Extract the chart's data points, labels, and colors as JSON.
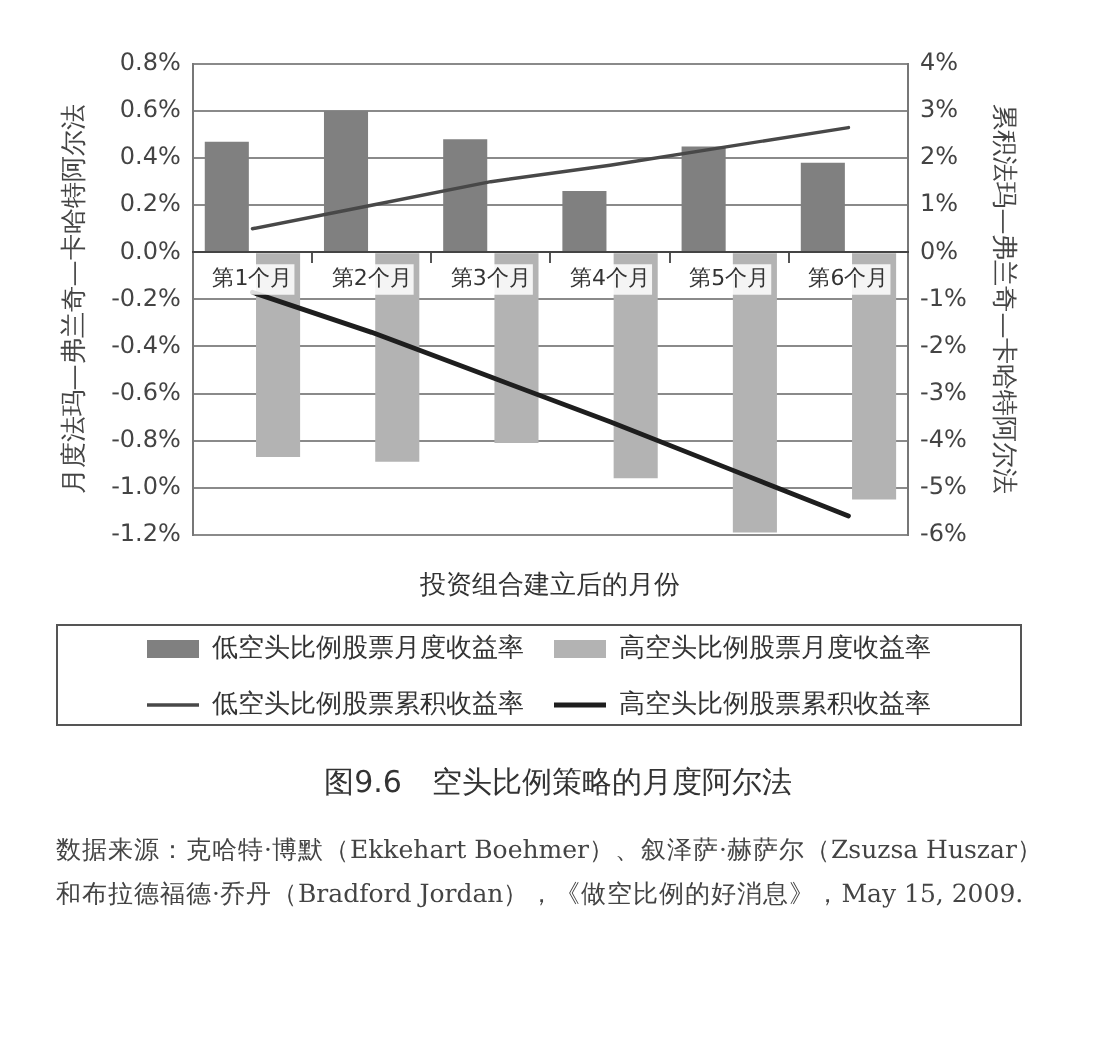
{
  "chart_data": {
    "type": "bar",
    "title": "图9.6　空头比例策略的月度阿尔法",
    "xlabel": "投资组合建立后的月份",
    "ylabel": "月度法玛—弗兰奇—卡哈特阿尔法",
    "y2label": "累积法玛—弗兰奇—卡哈特阿尔法",
    "categories": [
      "第1个月",
      "第2个月",
      "第3个月",
      "第4个月",
      "第5个月",
      "第6个月"
    ],
    "series": [
      {
        "name": "低空头比例股票月度收益率",
        "color": "#808080",
        "values": [
          0.47,
          0.6,
          0.48,
          0.26,
          0.45,
          0.38
        ]
      },
      {
        "name": "高空头比例股票月度收益率",
        "color": "#b3b3b3",
        "values": [
          -0.87,
          -0.89,
          -0.81,
          -0.96,
          -1.19,
          -1.05
        ]
      },
      {
        "name": "低空头比例股票累积收益率",
        "type": "line",
        "axis": "y2",
        "color": "#484848",
        "values": [
          0.5,
          1.0,
          1.5,
          1.85,
          2.25,
          2.65
        ]
      },
      {
        "name": "高空头比例股票累积收益率",
        "type": "line",
        "axis": "y2",
        "color": "#1e1e1e",
        "values": [
          -0.85,
          -1.7,
          -2.65,
          -3.6,
          -4.6,
          -5.6
        ]
      }
    ],
    "ylim": [
      -1.2,
      0.8
    ],
    "yticks": [
      {
        "value": -1.2,
        "label": "-1.2%"
      },
      {
        "value": -1.0,
        "label": "-1.0%"
      },
      {
        "value": -0.8,
        "label": "-0.8%"
      },
      {
        "value": -0.6,
        "label": "-0.6%"
      },
      {
        "value": -0.4,
        "label": "-0.4%"
      },
      {
        "value": -0.2,
        "label": "-0.2%"
      },
      {
        "value": 0,
        "label": "0.0%"
      },
      {
        "value": 0.2,
        "label": "0.2%"
      },
      {
        "value": 0.4,
        "label": "0.4%"
      },
      {
        "value": 0.6,
        "label": "0.6%"
      },
      {
        "value": 0.8,
        "label": "0.8%"
      }
    ],
    "y2lim": [
      -6,
      4
    ],
    "y2ticks": [
      {
        "value": -6,
        "label": "-6%"
      },
      {
        "value": -5,
        "label": "-5%"
      },
      {
        "value": -4,
        "label": "-4%"
      },
      {
        "value": -3,
        "label": "-3%"
      },
      {
        "value": -2,
        "label": "-2%"
      },
      {
        "value": -1,
        "label": "-1%"
      },
      {
        "value": 0,
        "label": "0%"
      },
      {
        "value": 1,
        "label": "1%"
      },
      {
        "value": 2,
        "label": "2%"
      },
      {
        "value": 3,
        "label": "3%"
      },
      {
        "value": 4,
        "label": "4%"
      }
    ],
    "grid": "y",
    "legend": "bottom",
    "marker": "none",
    "annotations": [
      "数据来源：克哈特·博默（Ekkehart Boehmer）、叙泽萨·赫萨尔（Zsuzsa Huszar）和布拉德福德·乔丹（Bradford Jordan），《做空比例的好消息》，May 15, 2009."
    ]
  }
}
